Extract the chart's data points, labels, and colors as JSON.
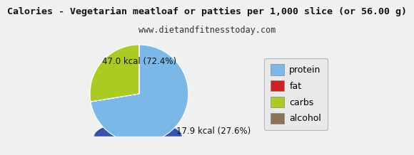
{
  "title": "Calories - Vegetarian meatloaf or patties per 1,000 slice (or 56.00 g)",
  "subtitle": "www.dietandfitnesstoday.com",
  "slices": [
    72.4,
    0.001,
    27.6,
    0.001
  ],
  "colors": [
    "#7ab8e8",
    "#cc2222",
    "#aacc22",
    "#8b7355"
  ],
  "shadow_color": "#2244aa",
  "legend_labels": [
    "protein",
    "fat",
    "carbs",
    "alcohol"
  ],
  "pie_label_protein": "47.0 kcal (72.4%)",
  "pie_label_carbs": "17.9 kcal (27.6%)",
  "title_fontsize": 9.5,
  "subtitle_fontsize": 8.5,
  "label_fontsize": 8.5,
  "legend_fontsize": 9,
  "startangle": 90,
  "bg_color": "#f0f0f0"
}
